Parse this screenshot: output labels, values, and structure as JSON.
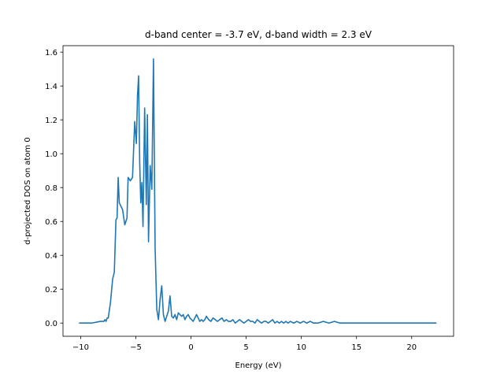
{
  "chart_data": {
    "type": "line",
    "title": "d-band center = -3.7 eV, d-band width = 2.3 eV",
    "xlabel": "Energy (eV)",
    "ylabel": "d-projected DOS on atom 0",
    "xlim": [
      -11.6,
      23.8
    ],
    "ylim": [
      -0.078,
      1.638
    ],
    "xticks": [
      -10,
      -5,
      0,
      5,
      10,
      15,
      20
    ],
    "yticks": [
      0.0,
      0.2,
      0.4,
      0.6,
      0.8,
      1.0,
      1.2,
      1.4,
      1.6
    ],
    "xtick_labels": [
      "−10",
      "−5",
      "0",
      "5",
      "10",
      "15",
      "20"
    ],
    "ytick_labels": [
      "0.0",
      "0.2",
      "0.4",
      "0.6",
      "0.8",
      "1.0",
      "1.2",
      "1.4",
      "1.6"
    ],
    "grid": false,
    "legend": "none",
    "series": [
      {
        "color": "#1f77b4",
        "x": [
          -10.1,
          -9.0,
          -8.2,
          -7.9,
          -7.8,
          -7.7,
          -7.6,
          -7.5,
          -7.3,
          -7.1,
          -6.95,
          -6.8,
          -6.7,
          -6.6,
          -6.5,
          -6.35,
          -6.2,
          -6.0,
          -5.8,
          -5.7,
          -5.5,
          -5.3,
          -5.1,
          -4.95,
          -4.85,
          -4.75,
          -4.65,
          -4.55,
          -4.45,
          -4.35,
          -4.2,
          -4.05,
          -3.95,
          -3.85,
          -3.7,
          -3.55,
          -3.4,
          -3.25,
          -3.1,
          -2.95,
          -2.8,
          -2.65,
          -2.5,
          -2.35,
          -2.2,
          -2.05,
          -1.9,
          -1.75,
          -1.6,
          -1.45,
          -1.3,
          -1.15,
          -1.0,
          -0.85,
          -0.7,
          -0.55,
          -0.4,
          -0.25,
          -0.1,
          0.05,
          0.2,
          0.35,
          0.5,
          0.65,
          0.8,
          0.95,
          1.1,
          1.25,
          1.4,
          1.6,
          1.8,
          2.0,
          2.2,
          2.4,
          2.6,
          2.8,
          3.0,
          3.2,
          3.4,
          3.6,
          3.8,
          4.0,
          4.2,
          4.4,
          4.6,
          4.8,
          5.0,
          5.2,
          5.4,
          5.6,
          5.8,
          6.0,
          6.2,
          6.4,
          6.6,
          6.8,
          7.0,
          7.2,
          7.4,
          7.6,
          7.8,
          8.0,
          8.2,
          8.4,
          8.6,
          8.8,
          9.0,
          9.3,
          9.6,
          9.9,
          10.2,
          10.5,
          10.8,
          11.1,
          11.5,
          12.0,
          12.5,
          13.0,
          13.5,
          14.0,
          15.0,
          16.0,
          17.0,
          18.0,
          19.0,
          20.0,
          21.0,
          22.2
        ],
        "y": [
          0.0,
          0.0,
          0.01,
          0.01,
          0.02,
          0.01,
          0.03,
          0.03,
          0.12,
          0.26,
          0.3,
          0.61,
          0.62,
          0.86,
          0.71,
          0.69,
          0.67,
          0.58,
          0.62,
          0.86,
          0.84,
          0.86,
          1.19,
          1.06,
          1.34,
          1.46,
          0.95,
          0.71,
          0.83,
          0.57,
          1.27,
          0.7,
          1.23,
          0.48,
          0.93,
          0.79,
          1.56,
          0.44,
          0.08,
          0.02,
          0.14,
          0.22,
          0.05,
          0.01,
          0.04,
          0.07,
          0.16,
          0.04,
          0.03,
          0.05,
          0.02,
          0.06,
          0.05,
          0.04,
          0.05,
          0.02,
          0.04,
          0.05,
          0.03,
          0.02,
          0.01,
          0.03,
          0.05,
          0.03,
          0.01,
          0.02,
          0.01,
          0.02,
          0.04,
          0.02,
          0.01,
          0.03,
          0.02,
          0.01,
          0.02,
          0.03,
          0.01,
          0.02,
          0.01,
          0.01,
          0.02,
          0.0,
          0.01,
          0.02,
          0.01,
          0.0,
          0.01,
          0.02,
          0.01,
          0.01,
          0.0,
          0.02,
          0.01,
          0.0,
          0.01,
          0.01,
          0.0,
          0.01,
          0.02,
          0.0,
          0.01,
          0.0,
          0.01,
          0.0,
          0.01,
          0.0,
          0.01,
          0.0,
          0.01,
          0.0,
          0.01,
          0.0,
          0.01,
          0.0,
          0.0,
          0.01,
          0.0,
          0.01,
          0.0,
          0.0,
          0.0,
          0.0,
          0.0,
          0.0,
          0.0,
          0.0,
          0.0,
          0.0
        ]
      }
    ]
  }
}
